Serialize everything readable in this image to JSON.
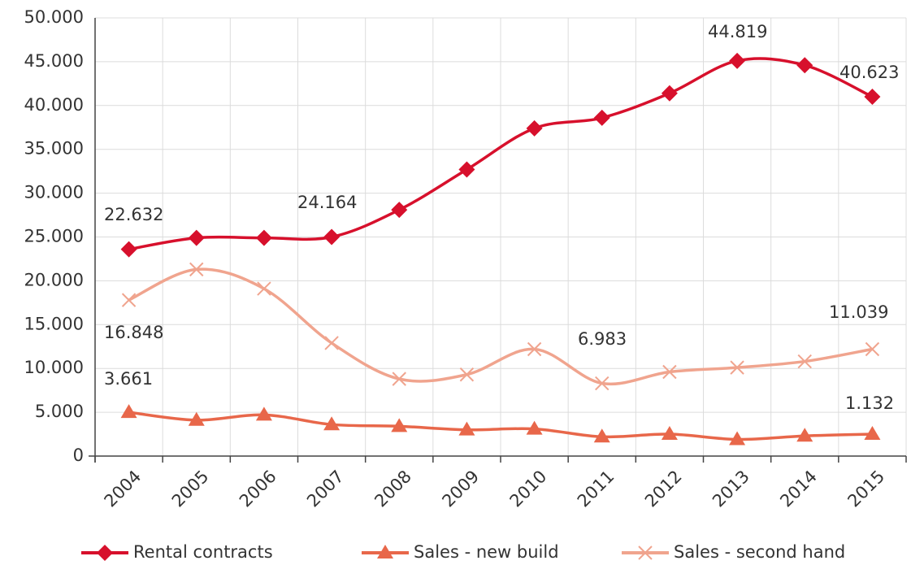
{
  "chart_data": {
    "type": "line",
    "categories": [
      "2004",
      "2005",
      "2006",
      "2007",
      "2008",
      "2009",
      "2010",
      "2011",
      "2012",
      "2013",
      "2014",
      "2015"
    ],
    "series": [
      {
        "name": "Rental contracts",
        "color": "#d7102c",
        "marker": "diamond",
        "values": [
          23600,
          24900,
          24900,
          25000,
          28100,
          32700,
          37400,
          38600,
          41400,
          45100,
          44600,
          41000
        ]
      },
      {
        "name": "Sales - new build",
        "color": "#e8674a",
        "marker": "triangle",
        "values": [
          5000,
          4100,
          4700,
          3600,
          3400,
          3000,
          3100,
          2200,
          2500,
          1900,
          2300,
          2500
        ]
      },
      {
        "name": "Sales - second hand",
        "color": "#f0a48e",
        "marker": "x",
        "values": [
          17800,
          21300,
          19100,
          12900,
          8800,
          9300,
          12200,
          8300,
          9600,
          10100,
          10800,
          12200
        ]
      }
    ],
    "annotations": [
      "22.632",
      "24.164",
      "44.819",
      "40.623",
      "16.848",
      "6.983",
      "11.039",
      "3.661",
      "1.132"
    ],
    "ylim": [
      0,
      50000
    ],
    "yticks": [
      0,
      {
        "value": 5000,
        "label": "5.000"
      },
      {
        "value": 10000,
        "label": "10.000"
      },
      {
        "value": 15000,
        "label": "15.000"
      },
      {
        "value": 20000,
        "label": "20.000"
      },
      {
        "value": 25000,
        "label": "25.000"
      },
      {
        "value": 30000,
        "label": "30.000"
      },
      {
        "value": 35000,
        "label": "35.000"
      },
      {
        "value": 40000,
        "label": "40.000"
      },
      {
        "value": 45000,
        "label": "45.000"
      },
      {
        "value": 50000,
        "label": "50.000"
      }
    ],
    "grid": true,
    "smooth": true,
    "legend": "bottom"
  }
}
